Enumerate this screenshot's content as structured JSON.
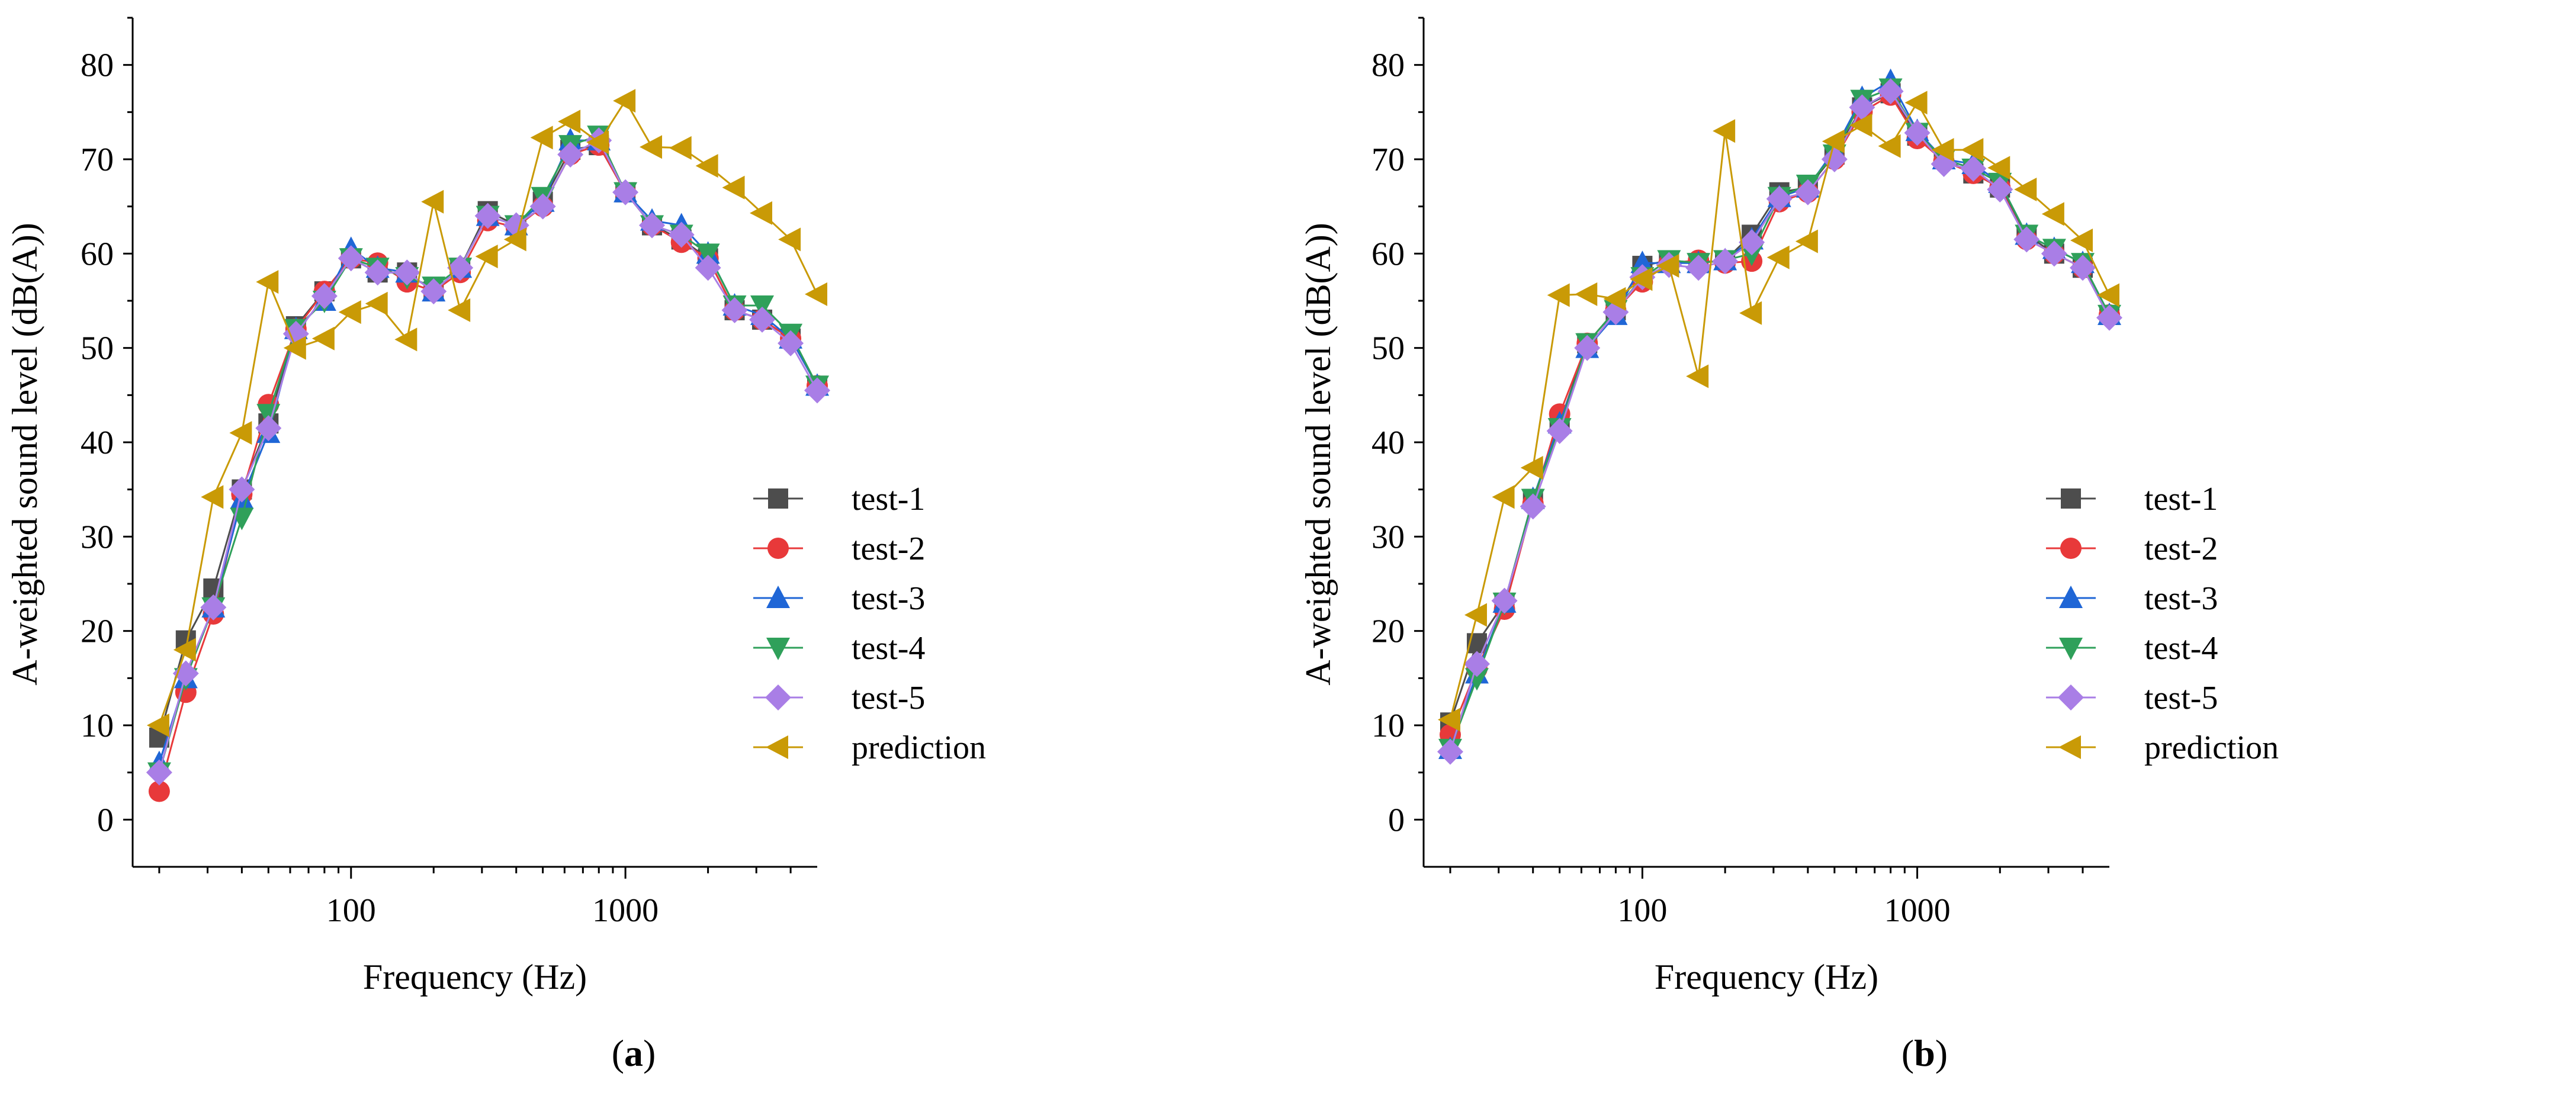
{
  "chart_data": [
    {
      "type": "line",
      "panel_label": "(a)",
      "panel_letter": "a",
      "xlabel": "Frequency (Hz)",
      "ylabel": "A-weighted sound level (dB(A))",
      "xscale": "log",
      "xlim": [
        16,
        5000
      ],
      "ylim": [
        -5,
        85
      ],
      "yticks": [
        0,
        10,
        20,
        30,
        40,
        50,
        60,
        70,
        80
      ],
      "xticks": [
        100,
        1000
      ],
      "xtick_labels": [
        "100",
        "1000"
      ],
      "legend_position": "right-center",
      "x": [
        20,
        25,
        31.5,
        40,
        50,
        63,
        80,
        100,
        125,
        160,
        200,
        250,
        315,
        400,
        500,
        630,
        800,
        1000,
        1250,
        1600,
        2000,
        2500,
        3150,
        4000,
        5000
      ],
      "series": [
        {
          "name": "test-1",
          "color": "#4d4d4d",
          "marker": "square",
          "values": [
            8.7,
            19,
            24.5,
            35,
            42,
            52.3,
            56,
            59.5,
            58,
            58,
            56,
            58.5,
            64.5,
            63,
            65.5,
            71,
            71.5,
            66.5,
            63,
            61.5,
            59.5,
            54,
            53,
            51,
            46
          ]
        },
        {
          "name": "test-2",
          "color": "#e8393a",
          "marker": "circle",
          "values": [
            3,
            13.5,
            21.8,
            34.5,
            44,
            52,
            56,
            59.5,
            59,
            57,
            56,
            58,
            63.5,
            62.8,
            65,
            70.5,
            71.5,
            66.5,
            63,
            61.2,
            59.5,
            54,
            53,
            51,
            46
          ]
        },
        {
          "name": "test-3",
          "color": "#1f66d6",
          "marker": "triangle-up",
          "values": [
            6,
            15,
            22.5,
            34,
            41,
            52,
            55,
            60.5,
            58.5,
            58,
            56,
            58.5,
            64,
            63,
            65.5,
            72,
            72,
            66.5,
            63.5,
            63,
            60,
            54.5,
            53.5,
            51,
            46
          ]
        },
        {
          "name": "test-4",
          "color": "#2fa05a",
          "marker": "triangle-down",
          "values": [
            5,
            15,
            22.5,
            32,
            43,
            52,
            55,
            59.5,
            58.5,
            57.5,
            56.5,
            58.5,
            64,
            63,
            66,
            71.5,
            72.5,
            66.5,
            63,
            62,
            60,
            54.5,
            54.5,
            51.5,
            46
          ]
        },
        {
          "name": "test-5",
          "color": "#a97ee6",
          "marker": "diamond",
          "values": [
            5,
            15.5,
            22.5,
            35,
            41.5,
            51.5,
            55.5,
            59.5,
            58,
            58,
            56,
            58.5,
            64,
            63,
            65,
            70.5,
            72,
            66.5,
            63,
            62,
            58.5,
            54,
            53,
            50.5,
            45.5
          ]
        },
        {
          "name": "prediction",
          "color": "#c99a06",
          "marker": "triangle-left",
          "values": [
            10,
            18,
            34.2,
            41,
            57,
            50,
            51,
            53.8,
            54.7,
            50.9,
            65.5,
            54,
            59.7,
            61.5,
            72.3,
            74,
            71.8,
            76.2,
            71.3,
            71.2,
            69.3,
            67,
            64.3,
            61.5,
            55.7
          ]
        }
      ]
    },
    {
      "type": "line",
      "panel_label": "(b)",
      "panel_letter": "b",
      "xlabel": "Frequency (Hz)",
      "ylabel": "A-weighted sound level (dB(A))",
      "xscale": "log",
      "xlim": [
        16,
        5000
      ],
      "ylim": [
        -5,
        85
      ],
      "yticks": [
        0,
        10,
        20,
        30,
        40,
        50,
        60,
        70,
        80
      ],
      "xticks": [
        100,
        1000
      ],
      "xtick_labels": [
        "100",
        "1000"
      ],
      "legend_position": "right-center",
      "x": [
        20,
        25,
        31.5,
        40,
        50,
        63,
        80,
        100,
        125,
        160,
        200,
        250,
        315,
        400,
        500,
        630,
        800,
        1000,
        1250,
        1600,
        2000,
        2500,
        3150,
        4000,
        5000
      ],
      "series": [
        {
          "name": "test-1",
          "color": "#4d4d4d",
          "marker": "square",
          "values": [
            10.3,
            18.7,
            23,
            34,
            42,
            50.5,
            54,
            58.7,
            59.3,
            59,
            59.3,
            62,
            66.5,
            67,
            70.5,
            75.5,
            77,
            72.5,
            70,
            68.5,
            67,
            62,
            60,
            58.5,
            53.5
          ]
        },
        {
          "name": "test-2",
          "color": "#e8393a",
          "marker": "circle",
          "values": [
            9,
            16,
            22.3,
            33.5,
            43,
            50.5,
            54,
            57,
            59,
            59.3,
            59,
            59.2,
            65.5,
            66.5,
            70,
            75,
            76.8,
            72.2,
            69.8,
            68.5,
            67,
            61.5,
            60,
            58.5,
            53.5
          ]
        },
        {
          "name": "test-3",
          "color": "#1f66d6",
          "marker": "triangle-up",
          "values": [
            7.5,
            15.5,
            23,
            34,
            42,
            50,
            53.5,
            59,
            59,
            59,
            59.3,
            61.5,
            66,
            67,
            71,
            76.5,
            78.3,
            73,
            70,
            69.5,
            67.5,
            62,
            60.5,
            59,
            53.5
          ]
        },
        {
          "name": "test-4",
          "color": "#2fa05a",
          "marker": "triangle-down",
          "values": [
            7.5,
            15,
            23,
            34,
            41.5,
            50.5,
            54,
            57.5,
            59.3,
            59,
            59.3,
            60,
            66,
            67.3,
            70.5,
            76.3,
            77.5,
            72.8,
            70,
            69,
            67.5,
            62,
            60.5,
            59,
            53.5
          ]
        },
        {
          "name": "test-5",
          "color": "#a97ee6",
          "marker": "diamond",
          "values": [
            7.2,
            16.5,
            23.2,
            33.2,
            41.2,
            50,
            53.8,
            57.5,
            58.8,
            58.5,
            59.2,
            61.2,
            65.8,
            66.5,
            70,
            75.5,
            77.2,
            72.8,
            69.5,
            69,
            66.8,
            61.5,
            60,
            58.5,
            53.2
          ]
        },
        {
          "name": "prediction",
          "color": "#c99a06",
          "marker": "triangle-left",
          "values": [
            10.6,
            21.7,
            34.2,
            37.3,
            55.6,
            55.7,
            55.2,
            57.3,
            58.7,
            47,
            73,
            53.7,
            59.6,
            61.3,
            71.9,
            73.6,
            71.4,
            76,
            71,
            71,
            69.1,
            66.8,
            64.2,
            61.4,
            55.6
          ]
        }
      ]
    }
  ]
}
